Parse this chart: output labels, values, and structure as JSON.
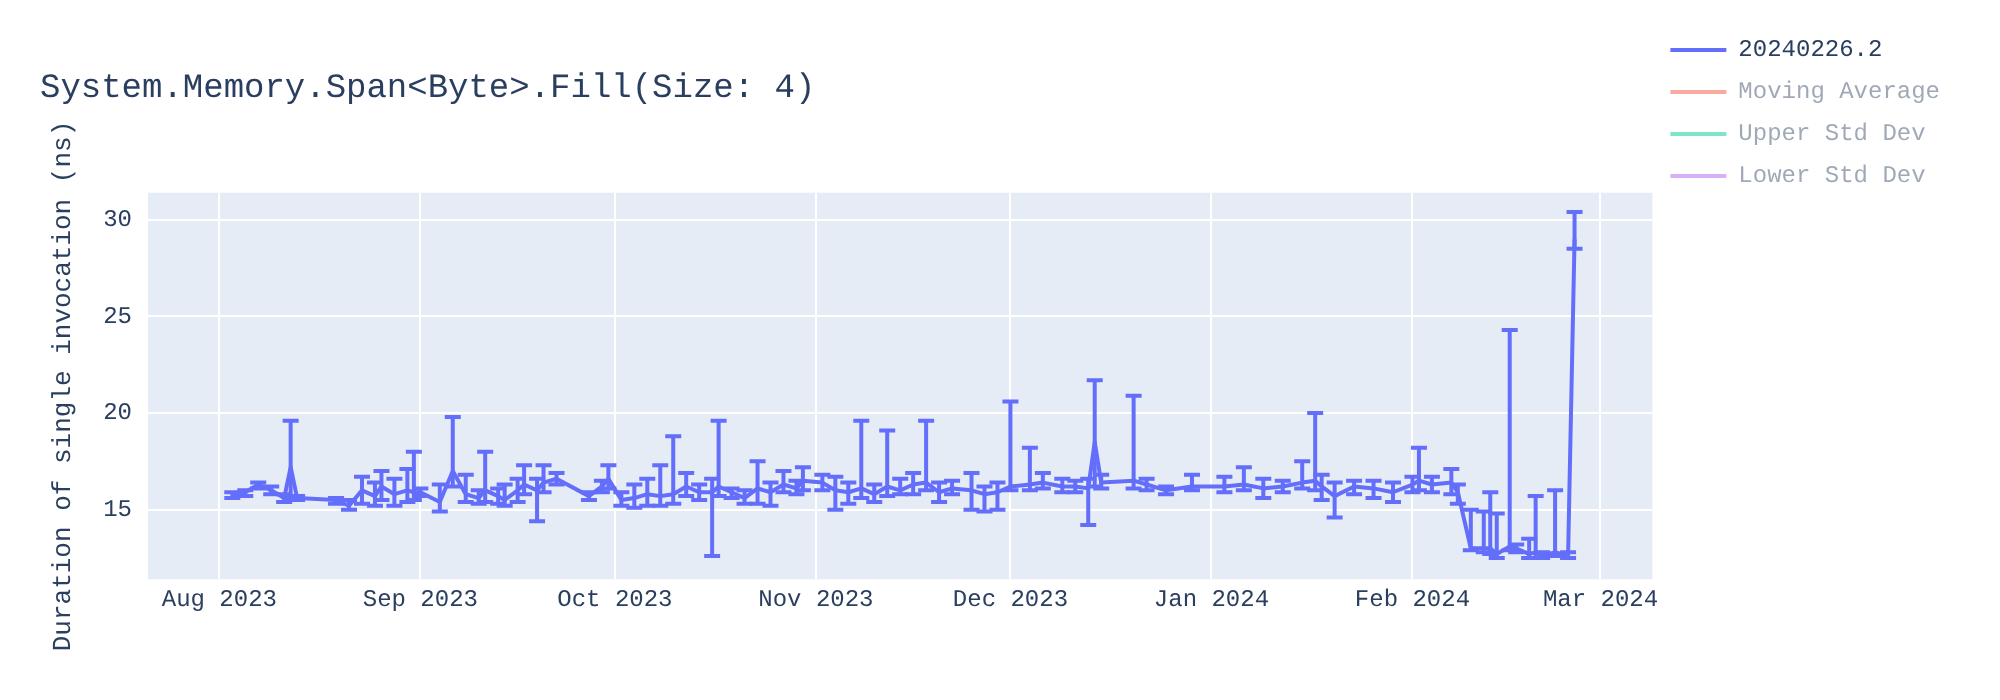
{
  "chart_data": {
    "type": "line",
    "title": "System.Memory.Span<Byte>.Fill(Size: 4)",
    "ylabel": "Duration of single invocation (ns)",
    "x": [
      "2023-08-03",
      "2023-08-05",
      "2023-08-07",
      "2023-08-09",
      "2023-08-11",
      "2023-08-12",
      "2023-08-13",
      "2023-08-19",
      "2023-08-21",
      "2023-08-23",
      "2023-08-25",
      "2023-08-26",
      "2023-08-28",
      "2023-08-30",
      "2023-08-31",
      "2023-09-01",
      "2023-09-04",
      "2023-09-06",
      "2023-09-08",
      "2023-09-10",
      "2023-09-11",
      "2023-09-13",
      "2023-09-14",
      "2023-09-16",
      "2023-09-17",
      "2023-09-19",
      "2023-09-20",
      "2023-09-22",
      "2023-09-27",
      "2023-09-29",
      "2023-09-30",
      "2023-10-02",
      "2023-10-04",
      "2023-10-06",
      "2023-10-08",
      "2023-10-10",
      "2023-10-12",
      "2023-10-14",
      "2023-10-16",
      "2023-10-17",
      "2023-10-19",
      "2023-10-21",
      "2023-10-23",
      "2023-10-25",
      "2023-10-27",
      "2023-10-29",
      "2023-10-30",
      "2023-11-02",
      "2023-11-04",
      "2023-11-06",
      "2023-11-08",
      "2023-11-10",
      "2023-11-12",
      "2023-11-14",
      "2023-11-16",
      "2023-11-18",
      "2023-11-20",
      "2023-11-22",
      "2023-11-25",
      "2023-11-27",
      "2023-11-29",
      "2023-12-01",
      "2023-12-04",
      "2023-12-06",
      "2023-12-09",
      "2023-12-11",
      "2023-12-13",
      "2023-12-14",
      "2023-12-15",
      "2023-12-20",
      "2023-12-22",
      "2023-12-25",
      "2023-12-29",
      "2024-01-03",
      "2024-01-06",
      "2024-01-09",
      "2024-01-12",
      "2024-01-15",
      "2024-01-17",
      "2024-01-18",
      "2024-01-20",
      "2024-01-23",
      "2024-01-26",
      "2024-01-29",
      "2024-02-01",
      "2024-02-02",
      "2024-02-04",
      "2024-02-07",
      "2024-02-08",
      "2024-02-10",
      "2024-02-12",
      "2024-02-13",
      "2024-02-14",
      "2024-02-16",
      "2024-02-17",
      "2024-02-19",
      "2024-02-20",
      "2024-02-21",
      "2024-02-23",
      "2024-02-25",
      "2024-02-26"
    ],
    "series": [
      {
        "name": "20240226.2",
        "color": "#636efa",
        "values": [
          15.7,
          15.9,
          16.3,
          16.0,
          15.6,
          17.2,
          15.6,
          15.5,
          15.2,
          16.0,
          15.7,
          16.2,
          15.8,
          16.0,
          15.9,
          15.9,
          15.4,
          17.0,
          15.8,
          15.6,
          16.0,
          15.7,
          15.5,
          16.0,
          16.3,
          16.0,
          16.4,
          16.6,
          15.7,
          16.2,
          16.6,
          15.5,
          15.6,
          15.8,
          15.7,
          15.8,
          16.2,
          15.9,
          15.9,
          16.2,
          15.9,
          15.6,
          16.1,
          15.9,
          16.3,
          16.1,
          16.5,
          16.4,
          16.0,
          15.9,
          16.1,
          15.8,
          16.2,
          16.0,
          16.3,
          16.4,
          15.9,
          16.1,
          16.0,
          15.8,
          15.9,
          16.2,
          16.3,
          16.4,
          16.2,
          16.2,
          16.1,
          18.5,
          16.4,
          16.5,
          16.3,
          16.0,
          16.2,
          16.2,
          16.3,
          16.1,
          16.2,
          16.4,
          16.5,
          16.2,
          15.7,
          16.2,
          16.1,
          15.9,
          16.3,
          16.5,
          16.3,
          16.4,
          15.9,
          13.0,
          13.0,
          13.0,
          12.7,
          13.1,
          13.0,
          12.7,
          12.8,
          12.6,
          12.8,
          12.6,
          29.0
        ],
        "errors": [
          [
            15.6,
            15.9
          ],
          [
            15.7,
            16.0
          ],
          [
            16.1,
            16.4
          ],
          [
            15.8,
            16.2
          ],
          [
            15.4,
            15.8
          ],
          [
            15.6,
            19.6
          ],
          [
            15.5,
            15.7
          ],
          [
            15.3,
            15.6
          ],
          [
            15.0,
            15.5
          ],
          [
            15.3,
            16.7
          ],
          [
            15.2,
            16.4
          ],
          [
            15.5,
            17.0
          ],
          [
            15.2,
            16.6
          ],
          [
            15.4,
            17.1
          ],
          [
            15.5,
            18.0
          ],
          [
            15.7,
            16.1
          ],
          [
            14.9,
            16.3
          ],
          [
            16.2,
            19.8
          ],
          [
            15.4,
            16.8
          ],
          [
            15.3,
            16.0
          ],
          [
            15.4,
            18.0
          ],
          [
            15.3,
            16.1
          ],
          [
            15.2,
            16.3
          ],
          [
            15.4,
            16.6
          ],
          [
            15.8,
            17.3
          ],
          [
            14.4,
            16.6
          ],
          [
            15.9,
            17.3
          ],
          [
            16.3,
            16.9
          ],
          [
            15.5,
            15.9
          ],
          [
            15.9,
            16.5
          ],
          [
            16.1,
            17.3
          ],
          [
            15.2,
            15.9
          ],
          [
            15.1,
            16.3
          ],
          [
            15.2,
            16.6
          ],
          [
            15.2,
            17.3
          ],
          [
            15.3,
            18.8
          ],
          [
            15.7,
            16.9
          ],
          [
            15.5,
            16.3
          ],
          [
            12.6,
            16.6
          ],
          [
            15.7,
            19.6
          ],
          [
            15.6,
            16.1
          ],
          [
            15.3,
            16.0
          ],
          [
            15.3,
            17.5
          ],
          [
            15.2,
            16.4
          ],
          [
            15.9,
            17.0
          ],
          [
            15.8,
            16.5
          ],
          [
            16.0,
            17.2
          ],
          [
            16.0,
            16.8
          ],
          [
            15.0,
            16.7
          ],
          [
            15.3,
            16.4
          ],
          [
            15.6,
            19.6
          ],
          [
            15.4,
            16.3
          ],
          [
            15.7,
            19.1
          ],
          [
            15.8,
            16.6
          ],
          [
            15.8,
            16.9
          ],
          [
            16.0,
            19.6
          ],
          [
            15.4,
            16.4
          ],
          [
            15.8,
            16.5
          ],
          [
            15.0,
            16.9
          ],
          [
            14.9,
            16.2
          ],
          [
            15.0,
            16.4
          ],
          [
            16.0,
            20.6
          ],
          [
            16.0,
            18.2
          ],
          [
            16.1,
            16.9
          ],
          [
            15.9,
            16.6
          ],
          [
            15.9,
            16.5
          ],
          [
            14.2,
            16.6
          ],
          [
            16.2,
            21.7
          ],
          [
            16.1,
            16.8
          ],
          [
            16.1,
            20.9
          ],
          [
            16.0,
            16.6
          ],
          [
            15.8,
            16.2
          ],
          [
            16.0,
            16.8
          ],
          [
            15.9,
            16.7
          ],
          [
            16.0,
            17.2
          ],
          [
            15.6,
            16.6
          ],
          [
            15.9,
            16.5
          ],
          [
            16.1,
            17.5
          ],
          [
            16.0,
            20.0
          ],
          [
            15.5,
            16.8
          ],
          [
            14.6,
            16.4
          ],
          [
            15.8,
            16.5
          ],
          [
            15.6,
            16.5
          ],
          [
            15.4,
            16.4
          ],
          [
            15.9,
            16.7
          ],
          [
            16.0,
            18.2
          ],
          [
            15.9,
            16.7
          ],
          [
            15.8,
            17.1
          ],
          [
            15.3,
            16.3
          ],
          [
            12.9,
            15.0
          ],
          [
            12.8,
            14.9
          ],
          [
            12.7,
            15.9
          ],
          [
            12.5,
            14.8
          ],
          [
            12.9,
            24.3
          ],
          [
            12.8,
            13.2
          ],
          [
            12.5,
            13.5
          ],
          [
            12.5,
            15.7
          ],
          [
            12.5,
            12.8
          ],
          [
            12.6,
            16.0
          ],
          [
            12.5,
            12.8
          ],
          [
            28.5,
            30.4
          ]
        ]
      },
      {
        "name": "Moving Average",
        "color": "#ef553b",
        "values": [
          null,
          null,
          null,
          null,
          null,
          null,
          null,
          null,
          null,
          null,
          null,
          null,
          null,
          null,
          null,
          null,
          null,
          null,
          null,
          null,
          null,
          null,
          null,
          null,
          null,
          null,
          null,
          null,
          null,
          null,
          null,
          null,
          null,
          null,
          null,
          null,
          null,
          null,
          null,
          null,
          null,
          null,
          null,
          null,
          null,
          null,
          null,
          null,
          null,
          null,
          null,
          null,
          null,
          null,
          null,
          null,
          null,
          null,
          null,
          null,
          null,
          null,
          null,
          null,
          null,
          null,
          null,
          null,
          null,
          null,
          null,
          null,
          null,
          null,
          null,
          null,
          null,
          null,
          null,
          null,
          null,
          null,
          null,
          null,
          null,
          null,
          null,
          null,
          null,
          null,
          null,
          null,
          null,
          null,
          null,
          null,
          null,
          null,
          null,
          null,
          null
        ]
      },
      {
        "name": "Upper Std Dev",
        "color": "#00cc96",
        "values": [
          null,
          null,
          null,
          null,
          null,
          null,
          null,
          null,
          null,
          null,
          null,
          null,
          null,
          null,
          null,
          null,
          null,
          null,
          null,
          null,
          null,
          null,
          null,
          null,
          null,
          null,
          null,
          null,
          null,
          null,
          null,
          null,
          null,
          null,
          null,
          null,
          null,
          null,
          null,
          null,
          null,
          null,
          null,
          null,
          null,
          null,
          null,
          null,
          null,
          null,
          null,
          null,
          null,
          null,
          null,
          null,
          null,
          null,
          null,
          null,
          null,
          null,
          null,
          null,
          null,
          null,
          null,
          null,
          null,
          null,
          null,
          null,
          null,
          null,
          null,
          null,
          null,
          null,
          null,
          null,
          null,
          null,
          null,
          null,
          null,
          null,
          null,
          null,
          null,
          null,
          null,
          null,
          null,
          null,
          null,
          null,
          null,
          null,
          null,
          null,
          null
        ]
      },
      {
        "name": "Lower Std Dev",
        "color": "#ab63fa",
        "values": [
          null,
          null,
          null,
          null,
          null,
          null,
          null,
          null,
          null,
          null,
          null,
          null,
          null,
          null,
          null,
          null,
          null,
          null,
          null,
          null,
          null,
          null,
          null,
          null,
          null,
          null,
          null,
          null,
          null,
          null,
          null,
          null,
          null,
          null,
          null,
          null,
          null,
          null,
          null,
          null,
          null,
          null,
          null,
          null,
          null,
          null,
          null,
          null,
          null,
          null,
          null,
          null,
          null,
          null,
          null,
          null,
          null,
          null,
          null,
          null,
          null,
          null,
          null,
          null,
          null,
          null,
          null,
          null,
          null,
          null,
          null,
          null,
          null,
          null,
          null,
          null,
          null,
          null,
          null,
          null,
          null,
          null,
          null,
          null,
          null,
          null,
          null,
          null,
          null,
          null,
          null,
          null,
          null,
          null,
          null,
          null,
          null,
          null,
          null,
          null,
          null
        ]
      }
    ],
    "xlim": [
      "2023-07-21",
      "2024-03-09"
    ],
    "xticks": [
      {
        "value": "2023-08-01",
        "label": "Aug 2023"
      },
      {
        "value": "2023-09-01",
        "label": "Sep 2023"
      },
      {
        "value": "2023-10-01",
        "label": "Oct 2023"
      },
      {
        "value": "2023-11-01",
        "label": "Nov 2023"
      },
      {
        "value": "2023-12-01",
        "label": "Dec 2023"
      },
      {
        "value": "2024-01-01",
        "label": "Jan 2024"
      },
      {
        "value": "2024-02-01",
        "label": "Feb 2024"
      },
      {
        "value": "2024-03-01",
        "label": "Mar 2024"
      }
    ],
    "ylim": [
      11.4,
      31.4
    ],
    "yticks": [
      15,
      20,
      25,
      30
    ],
    "grid": true,
    "legend": "top right",
    "marker": "none",
    "line_style": "solid"
  }
}
